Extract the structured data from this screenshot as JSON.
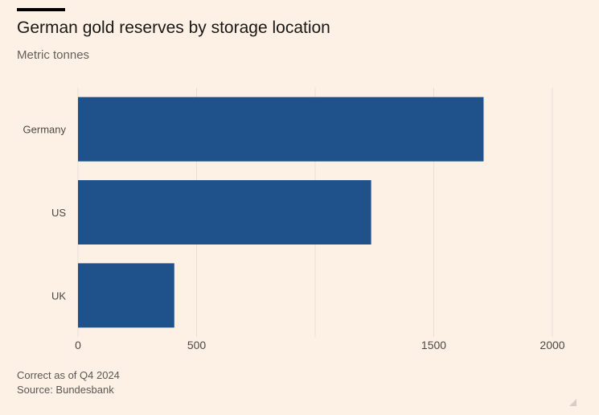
{
  "chart_data": {
    "type": "bar",
    "orientation": "horizontal",
    "title": "German gold reserves by storage location",
    "subtitle": "Metric tonnes",
    "categories": [
      "Germany",
      "US",
      "UK"
    ],
    "values": [
      1710,
      1236,
      406
    ],
    "xlim": [
      0,
      2000
    ],
    "xticks": [
      0,
      500,
      1000,
      1500,
      2000
    ],
    "xtick_labels": [
      "0",
      "500",
      "",
      "1500",
      "2000"
    ],
    "grid": true,
    "bar_color": "#1f528a",
    "grid_color": "#e9ded4"
  },
  "footer": {
    "note": "Correct as of Q4 2024",
    "source": "Source: Bundesbank"
  }
}
